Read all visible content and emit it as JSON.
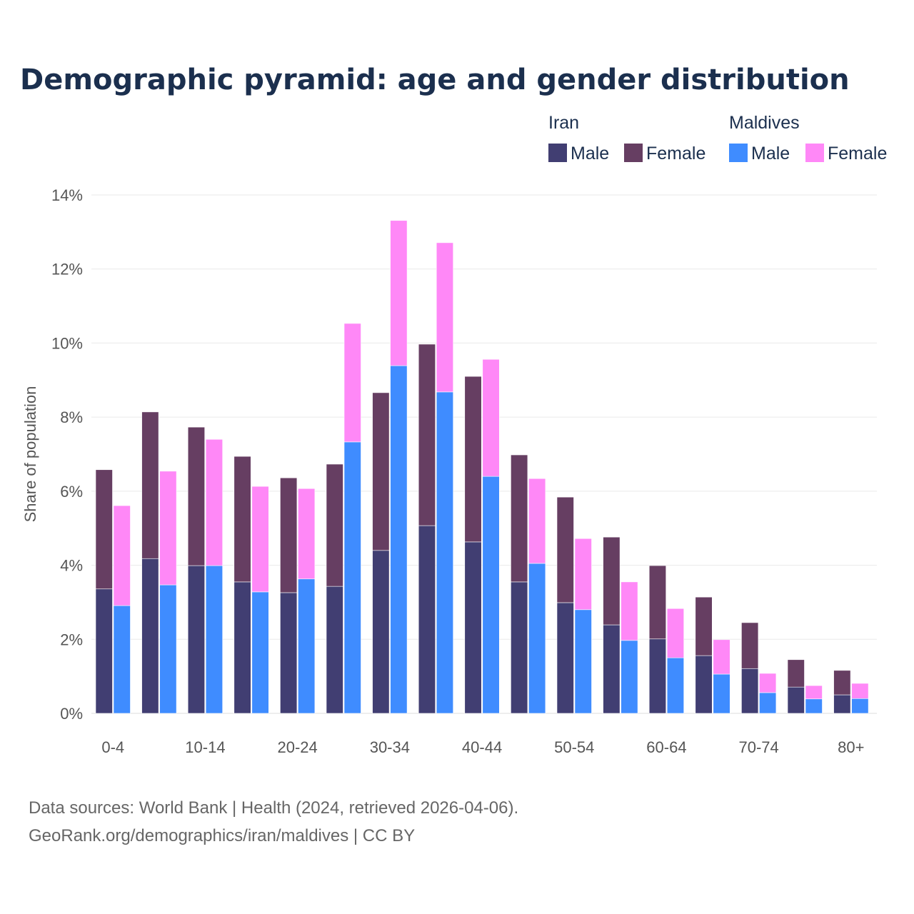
{
  "chart_data": {
    "type": "bar",
    "stacked": true,
    "title": "Demographic pyramid: age and gender distribution",
    "ylabel": "Share of population",
    "xlabel": "",
    "ylim": [
      0,
      14
    ],
    "yticks": [
      "0%",
      "2%",
      "4%",
      "6%",
      "8%",
      "10%",
      "12%",
      "14%"
    ],
    "grid": true,
    "legend_placement": "top-right",
    "categories": [
      "0-4",
      "5-9",
      "10-14",
      "15-19",
      "20-24",
      "25-29",
      "30-34",
      "35-39",
      "40-44",
      "45-49",
      "50-54",
      "55-59",
      "60-64",
      "65-69",
      "70-74",
      "75-79",
      "80+"
    ],
    "xtick_labels": [
      "0-4",
      "",
      "10-14",
      "",
      "20-24",
      "",
      "30-34",
      "",
      "40-44",
      "",
      "50-54",
      "",
      "60-64",
      "",
      "70-74",
      "",
      "80+"
    ],
    "groups": [
      {
        "name": "Iran",
        "series": [
          {
            "name": "Male",
            "color": "#413e72",
            "values": [
              3.36,
              4.18,
              3.99,
              3.55,
              3.26,
              3.43,
              4.4,
              5.07,
              4.63,
              3.55,
              2.99,
              2.39,
              2.01,
              1.56,
              1.21,
              0.71,
              0.5
            ]
          },
          {
            "name": "Female",
            "color": "#663e62",
            "values": [
              3.22,
              3.96,
              3.74,
              3.39,
              3.1,
              3.3,
              4.26,
              4.9,
              4.47,
              3.43,
              2.85,
              2.37,
              1.98,
              1.58,
              1.24,
              0.74,
              0.66
            ]
          }
        ]
      },
      {
        "name": "Maldives",
        "series": [
          {
            "name": "Male",
            "color": "#3f8cff",
            "values": [
              2.91,
              3.47,
              3.99,
              3.28,
              3.63,
              7.33,
              9.39,
              8.68,
              6.4,
              4.05,
              2.8,
              1.97,
              1.5,
              1.06,
              0.56,
              0.39,
              0.4
            ]
          },
          {
            "name": "Female",
            "color": "#ff88f7",
            "values": [
              2.7,
              3.07,
              3.41,
              2.85,
              2.44,
              3.2,
              3.92,
              4.03,
              3.16,
              2.29,
              1.92,
              1.58,
              1.33,
              0.93,
              0.52,
              0.36,
              0.41
            ]
          }
        ]
      }
    ],
    "source_lines": [
      "Data sources: World Bank | Health (2024, retrieved 2026-04-06).",
      "GeoRank.org/demographics/iran/maldives | CC BY"
    ]
  }
}
